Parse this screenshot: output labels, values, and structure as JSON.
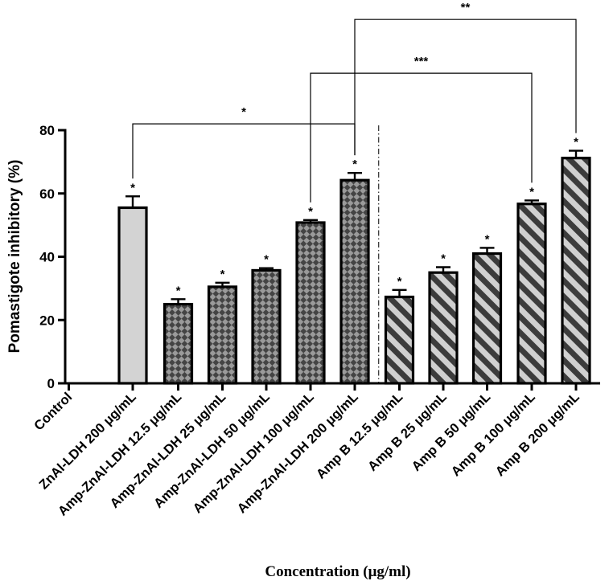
{
  "chart_data": {
    "type": "bar",
    "ylabel": "Pomastigote inhibitory (%)",
    "xlabel": "Concentration (μg/ml)",
    "ylim": [
      0,
      80
    ],
    "yticks": [
      0,
      20,
      40,
      60,
      80
    ],
    "categories": [
      "Control",
      "ZnAl-LDH 200 μg/mL",
      "Amp-ZnAl-LDH 12.5 μg/mL",
      "Amp-ZnAl-LDH 25 μg/mL",
      "Amp-ZnAl-LDH 50 μg/mL",
      "Amp-ZnAl-LDH 100 μg/mL",
      "Amp-ZnAl-LDH 200 μg/mL",
      "Amp B 12.5 μg/mL",
      "Amp B 25 μg/mL",
      "Amp B 50 μg/mL",
      "Amp B 100 μg/mL",
      "Amp B 200 μg/mL"
    ],
    "values": [
      0,
      55.5,
      25,
      30.5,
      35.7,
      50.8,
      64.2,
      27.3,
      35,
      41,
      56.7,
      71.2
    ],
    "errors": [
      0,
      3.6,
      1.6,
      1.3,
      0.7,
      0.8,
      2.3,
      2.2,
      1.7,
      1.8,
      1.1,
      2.3
    ],
    "patterns": [
      "none",
      "solid",
      "checker",
      "checker",
      "checker",
      "checker",
      "checker",
      "stripe",
      "stripe",
      "stripe",
      "stripe",
      "stripe"
    ],
    "significance": [
      "",
      "*",
      "*",
      "*",
      "*",
      "*",
      "*",
      "*",
      "*",
      "*",
      "*",
      "*"
    ],
    "comparisons": [
      {
        "from": 1,
        "to": 6,
        "label": "*",
        "level": 82
      },
      {
        "from": 5,
        "to": 10,
        "label": "***",
        "level": 98
      },
      {
        "from": 6,
        "to": 11,
        "label": "**",
        "level": 115
      }
    ],
    "divider_after_index": 6,
    "colors": {
      "solid_fill": "#d3d3d3",
      "checker_dark": "#444444",
      "checker_light": "#9a9a9a",
      "stripe_dark": "#3c3c3c",
      "stripe_light": "#d0d0d0",
      "ink": "#000000"
    }
  }
}
